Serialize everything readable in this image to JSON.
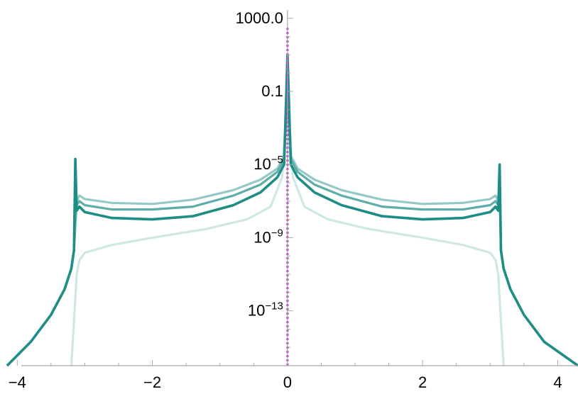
{
  "chart_data": {
    "type": "line",
    "title": "",
    "xlabel": "",
    "ylabel": "",
    "xlim": [
      -4.15,
      4.3
    ],
    "ylim": [
      1e-16,
      10000.0
    ],
    "yscale": "log",
    "grid": false,
    "legend": "none",
    "x_ticks": [
      {
        "value": -4,
        "label": "−4"
      },
      {
        "value": -2,
        "label": "−2"
      },
      {
        "value": 0,
        "label": "0"
      },
      {
        "value": 2,
        "label": "2"
      },
      {
        "value": 4,
        "label": "4"
      }
    ],
    "y_ticks": [
      {
        "value": 1000,
        "base": "1000.0",
        "exp": ""
      },
      {
        "value": 0.1,
        "base": "0.1",
        "exp": ""
      },
      {
        "value": 1e-05,
        "base": "10",
        "exp": "−5"
      },
      {
        "value": 1e-09,
        "base": "10",
        "exp": "−9"
      },
      {
        "value": 1e-13,
        "base": "10",
        "exp": "−13"
      }
    ],
    "series": [
      {
        "color": "#cfe7e5",
        "width": 3.2,
        "dash": "",
        "x": [
          -3.2,
          -3.15,
          -3.12,
          -3.08,
          -3.0,
          -2.6,
          -2.0,
          -1.2,
          -0.6,
          -0.25,
          -0.08,
          0,
          0.08,
          0.25,
          0.6,
          1.2,
          2.0,
          2.6,
          3.0,
          3.08,
          3.12,
          3.15,
          3.2
        ],
        "y": [
          1e-16,
          1e-13,
          1e-11,
          6e-11,
          1.5e-10,
          4e-10,
          1e-09,
          3e-09,
          1e-08,
          5e-08,
          2e-06,
          0.1,
          2e-06,
          5e-08,
          1e-08,
          3e-09,
          1e-09,
          4e-10,
          1.5e-10,
          6e-11,
          1e-11,
          1e-13,
          1e-16
        ]
      },
      {
        "color": "#96c9c6",
        "width": 3.2,
        "dash": "",
        "x": [
          -4.15,
          -3.8,
          -3.5,
          -3.3,
          -3.2,
          -3.16,
          -3.14,
          -3.12,
          -3.08,
          -3.0,
          -2.6,
          -2.0,
          -1.4,
          -0.8,
          -0.4,
          -0.15,
          -0.05,
          0,
          0.05,
          0.15,
          0.4,
          0.8,
          1.4,
          2.0,
          2.6,
          3.0,
          3.08,
          3.12,
          3.14,
          3.16,
          3.2,
          3.3,
          3.5,
          3.8,
          4.3
        ],
        "y": [
          1e-16,
          2e-15,
          6e-14,
          1.5e-12,
          2e-11,
          2e-10,
          1e-08,
          1e-07,
          2e-07,
          1.3e-07,
          8e-08,
          7e-08,
          1.2e-07,
          4e-07,
          1.5e-06,
          6e-06,
          3e-05,
          0.03,
          3e-05,
          6e-06,
          1.5e-06,
          4e-07,
          1.2e-07,
          7e-08,
          8e-08,
          1.3e-07,
          2e-07,
          1e-07,
          1e-06,
          2e-10,
          2e-11,
          1.5e-12,
          6e-14,
          2e-15,
          1e-16
        ]
      },
      {
        "color": "#5eada8",
        "width": 3.2,
        "dash": "",
        "x": [
          -4.15,
          -3.8,
          -3.5,
          -3.3,
          -3.2,
          -3.16,
          -3.14,
          -3.12,
          -3.08,
          -3.0,
          -2.6,
          -2.0,
          -1.4,
          -0.8,
          -0.4,
          -0.15,
          -0.05,
          0,
          0.05,
          0.15,
          0.4,
          0.8,
          1.4,
          2.0,
          2.6,
          3.0,
          3.08,
          3.12,
          3.14,
          3.16,
          3.2,
          3.3,
          3.5,
          3.8,
          4.3
        ],
        "y": [
          1e-16,
          2e-15,
          6e-14,
          1.5e-12,
          2e-11,
          2e-10,
          6e-09,
          6e-08,
          1e-07,
          6e-08,
          3.5e-08,
          3.5e-08,
          5e-08,
          2e-07,
          8e-07,
          4e-06,
          2e-05,
          0.3,
          2e-05,
          4e-06,
          8e-07,
          2e-07,
          5e-08,
          3.5e-08,
          3.5e-08,
          6e-08,
          1e-07,
          6e-08,
          3e-06,
          2e-10,
          2e-11,
          1.5e-12,
          6e-14,
          2e-15,
          1e-16
        ]
      },
      {
        "color": "#1e8d86",
        "width": 3.6,
        "dash": "",
        "x": [
          -4.15,
          -3.8,
          -3.5,
          -3.3,
          -3.2,
          -3.16,
          -3.14,
          -3.12,
          -3.08,
          -3.0,
          -2.6,
          -2.0,
          -1.4,
          -0.8,
          -0.4,
          -0.15,
          -0.05,
          0,
          0.05,
          0.15,
          0.4,
          0.8,
          1.4,
          2.0,
          2.6,
          3.0,
          3.08,
          3.12,
          3.14,
          3.16,
          3.2,
          3.3,
          3.5,
          3.8,
          4.3
        ],
        "y": [
          1e-16,
          2e-15,
          6e-14,
          1.5e-12,
          2e-11,
          2e-10,
          2e-05,
          3e-08,
          5e-08,
          2.5e-08,
          1.2e-08,
          1e-08,
          1.5e-08,
          6e-08,
          3e-07,
          2e-06,
          1e-05,
          10,
          1e-05,
          2e-06,
          3e-07,
          6e-08,
          1.5e-08,
          1e-08,
          1.2e-08,
          2.5e-08,
          5e-08,
          3e-08,
          1e-05,
          2e-10,
          2e-11,
          1.5e-12,
          6e-14,
          2e-15,
          1e-16
        ]
      },
      {
        "color": "#c21fc8",
        "width": 3,
        "dash": "3,3",
        "x": [
          0,
          0
        ],
        "y": [
          1e-16,
          300
        ]
      }
    ]
  }
}
